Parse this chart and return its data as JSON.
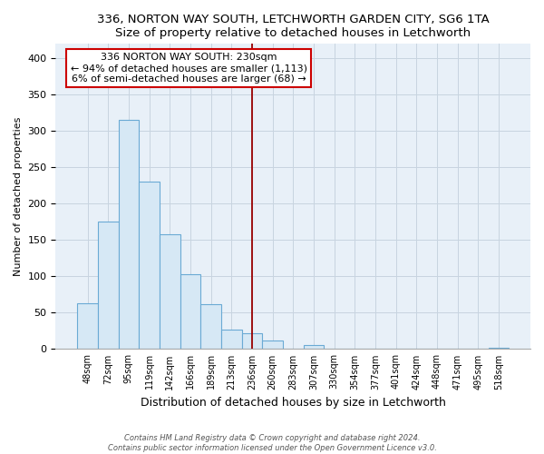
{
  "title1": "336, NORTON WAY SOUTH, LETCHWORTH GARDEN CITY, SG6 1TA",
  "title2": "Size of property relative to detached houses in Letchworth",
  "xlabel": "Distribution of detached houses by size in Letchworth",
  "ylabel": "Number of detached properties",
  "bar_labels": [
    "48sqm",
    "72sqm",
    "95sqm",
    "119sqm",
    "142sqm",
    "166sqm",
    "189sqm",
    "213sqm",
    "236sqm",
    "260sqm",
    "283sqm",
    "307sqm",
    "330sqm",
    "354sqm",
    "377sqm",
    "401sqm",
    "424sqm",
    "448sqm",
    "471sqm",
    "495sqm",
    "518sqm"
  ],
  "bar_values": [
    63,
    175,
    315,
    230,
    158,
    103,
    62,
    27,
    22,
    12,
    0,
    5,
    0,
    0,
    0,
    0,
    0,
    0,
    0,
    0,
    2
  ],
  "bar_color": "#d6e8f5",
  "bar_edge_color": "#6aaad4",
  "plot_bg_color": "#e8f0f8",
  "vline_x_index": 8,
  "vline_color": "#990000",
  "ylim": [
    0,
    420
  ],
  "yticks": [
    0,
    50,
    100,
    150,
    200,
    250,
    300,
    350,
    400
  ],
  "annotation_title": "336 NORTON WAY SOUTH: 230sqm",
  "annotation_line1": "← 94% of detached houses are smaller (1,113)",
  "annotation_line2": "6% of semi-detached houses are larger (68) →",
  "footer1": "Contains HM Land Registry data © Crown copyright and database right 2024.",
  "footer2": "Contains public sector information licensed under the Open Government Licence v3.0."
}
